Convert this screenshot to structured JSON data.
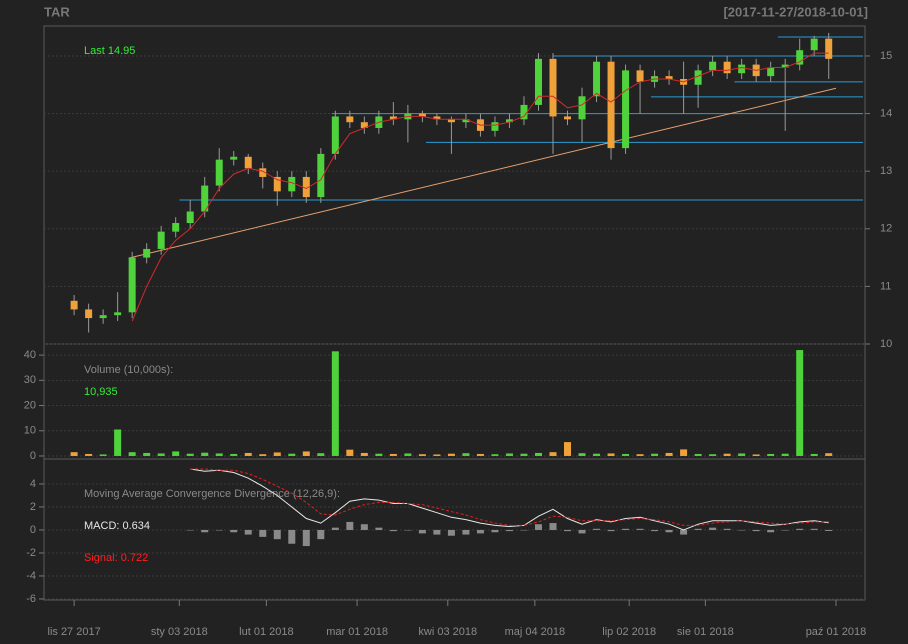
{
  "chart_data": {
    "type": "candlestick",
    "title": "TAR",
    "subtitle": "[2017-11-27/2018-10-01]",
    "annotation": "Last 14.95",
    "up_color": "#4fd23c",
    "down_color": "#f0a23a",
    "x": [
      0,
      4,
      8,
      12,
      16,
      20,
      24,
      28,
      32,
      36,
      40,
      44,
      48,
      52,
      56,
      60,
      64,
      68,
      72,
      76,
      80,
      84,
      88,
      92,
      96,
      100,
      104,
      108,
      112,
      116,
      120,
      124,
      128,
      132,
      136,
      140,
      144,
      148,
      152,
      156,
      160,
      164,
      168,
      172,
      176,
      180,
      184,
      188,
      192,
      196,
      200,
      204,
      208
    ],
    "xlim": [
      -8.3,
      218
    ],
    "xticks": [
      {
        "value": 0,
        "label": "lis 27 2017"
      },
      {
        "value": 29,
        "label": "sty 03 2018"
      },
      {
        "value": 53,
        "label": "lut 01 2018"
      },
      {
        "value": 78,
        "label": "mar 01 2018"
      },
      {
        "value": 103,
        "label": "kwi 03 2018"
      },
      {
        "value": 127,
        "label": "maj 04 2018"
      },
      {
        "value": 153,
        "label": "lip 02 2018"
      },
      {
        "value": 174,
        "label": "sie 01 2018"
      },
      {
        "value": 210,
        "label": "paź 01 2018"
      }
    ],
    "open": [
      10.75,
      10.6,
      10.45,
      10.5,
      10.55,
      11.5,
      11.65,
      11.95,
      12.1,
      12.3,
      12.75,
      13.2,
      13.25,
      13.05,
      12.9,
      12.65,
      12.9,
      12.55,
      13.3,
      13.95,
      13.85,
      13.75,
      13.95,
      13.9,
      14.0,
      13.95,
      13.9,
      13.85,
      13.9,
      13.7,
      13.85,
      13.9,
      14.15,
      14.95,
      13.95,
      13.9,
      14.3,
      14.9,
      13.4,
      14.75,
      14.55,
      14.65,
      14.6,
      14.5,
      14.75,
      14.9,
      14.7,
      14.85,
      14.65,
      14.8,
      14.85,
      15.1,
      15.3
    ],
    "high": [
      10.85,
      10.7,
      10.6,
      10.9,
      11.6,
      11.75,
      12.05,
      12.2,
      12.5,
      12.9,
      13.4,
      13.35,
      13.3,
      13.15,
      13.0,
      13.0,
      13.0,
      13.4,
      14.05,
      14.05,
      13.95,
      14.05,
      14.2,
      14.15,
      14.05,
      14.0,
      13.95,
      14.0,
      14.0,
      13.95,
      14.0,
      14.3,
      15.05,
      15.05,
      14.05,
      14.45,
      15.0,
      15.0,
      14.85,
      14.85,
      14.75,
      14.75,
      14.9,
      14.85,
      15.0,
      15.0,
      14.95,
      14.95,
      14.9,
      14.95,
      15.3,
      15.35,
      15.4
    ],
    "low": [
      10.5,
      10.2,
      10.35,
      10.4,
      10.45,
      11.4,
      11.55,
      11.85,
      12.0,
      12.2,
      12.65,
      13.1,
      12.95,
      12.7,
      12.4,
      12.55,
      12.45,
      12.45,
      13.2,
      13.75,
      13.65,
      13.65,
      13.8,
      13.5,
      13.85,
      13.8,
      13.3,
      13.75,
      13.6,
      13.6,
      13.75,
      13.8,
      14.05,
      13.3,
      13.8,
      13.5,
      14.2,
      13.2,
      13.3,
      14.0,
      14.45,
      14.5,
      14.0,
      14.1,
      14.65,
      14.6,
      14.6,
      14.55,
      14.55,
      13.7,
      14.75,
      15.0,
      14.6
    ],
    "close": [
      10.6,
      10.45,
      10.5,
      10.55,
      11.5,
      11.65,
      11.95,
      12.1,
      12.3,
      12.75,
      13.2,
      13.25,
      13.05,
      12.9,
      12.65,
      12.9,
      12.55,
      13.3,
      13.95,
      13.85,
      13.75,
      13.95,
      13.9,
      14.0,
      13.95,
      13.9,
      13.85,
      13.9,
      13.7,
      13.85,
      13.9,
      14.15,
      14.95,
      13.95,
      13.9,
      14.3,
      14.9,
      13.4,
      14.75,
      14.55,
      14.65,
      14.6,
      14.5,
      14.75,
      14.9,
      14.7,
      14.85,
      14.65,
      14.8,
      14.85,
      15.1,
      15.3,
      14.95
    ],
    "ylim": [
      10,
      15.52
    ],
    "yticks": [
      10,
      11,
      12,
      13,
      14,
      15
    ],
    "ma": {
      "color": "#d42a2a",
      "values": [
        null,
        null,
        null,
        null,
        10.4,
        11.0,
        11.5,
        11.8,
        12.0,
        12.3,
        12.7,
        12.95,
        13.05,
        13.0,
        12.85,
        12.8,
        12.7,
        12.85,
        13.3,
        13.65,
        13.75,
        13.85,
        13.9,
        13.95,
        13.95,
        13.9,
        13.9,
        13.9,
        13.8,
        13.8,
        13.85,
        13.95,
        14.3,
        14.3,
        14.1,
        14.15,
        14.35,
        14.2,
        14.4,
        14.55,
        14.6,
        14.6,
        14.55,
        14.65,
        14.75,
        14.75,
        14.8,
        14.75,
        14.8,
        14.8,
        14.9,
        15.05,
        15.05
      ]
    },
    "levels": [
      {
        "value": 15.33,
        "from": 194
      },
      {
        "value": 15.0,
        "from": 132
      },
      {
        "value": 14.55,
        "from": 182
      },
      {
        "value": 14.29,
        "from": 159
      },
      {
        "value": 14.0,
        "from": 71
      },
      {
        "value": 13.5,
        "from": 97
      },
      {
        "value": 12.5,
        "from": 29
      }
    ],
    "level_color": "#2a9bd6",
    "trendline": {
      "x": [
        15,
        210
      ],
      "y": [
        11.49,
        14.44
      ],
      "color": "#e8a070"
    },
    "volume": {
      "label": "Volume (10,000s):",
      "last_label": "10,935",
      "values": [
        1.5,
        0.8,
        0.6,
        10.5,
        1.5,
        1.2,
        1.0,
        1.8,
        0.9,
        1.3,
        1.0,
        0.8,
        1.2,
        0.7,
        1.4,
        0.9,
        1.8,
        1.1,
        41.5,
        2.5,
        1.2,
        0.9,
        0.8,
        1.0,
        0.7,
        0.6,
        0.9,
        1.1,
        0.8,
        0.7,
        1.0,
        0.9,
        1.2,
        1.5,
        5.5,
        1.1,
        0.9,
        1.0,
        0.8,
        0.7,
        0.9,
        1.2,
        2.6,
        0.8,
        0.7,
        0.9,
        1.0,
        0.6,
        0.8,
        0.9,
        42,
        0.8,
        1.0935
      ],
      "ylim": [
        -1.2,
        44.4
      ],
      "yticks": [
        0,
        10,
        20,
        30,
        40
      ]
    },
    "macd": {
      "label": "Moving Average Convergence Divergence (12,26,9):",
      "macd_label": "MACD: 0.634",
      "signal_label": "Signal: 0.722",
      "ylim": [
        -6.09,
        6.17
      ],
      "yticks": [
        -6,
        -4,
        -2,
        0,
        2,
        4
      ],
      "macd": {
        "color": "#e8e8e8",
        "values": [
          null,
          null,
          null,
          null,
          null,
          null,
          null,
          null,
          5.3,
          5.1,
          5.2,
          5.0,
          4.5,
          3.8,
          3.0,
          2.0,
          1.0,
          0.6,
          1.5,
          2.5,
          2.7,
          2.6,
          2.3,
          2.3,
          1.9,
          1.5,
          1.1,
          0.9,
          0.6,
          0.4,
          0.3,
          0.4,
          1.2,
          1.8,
          1.0,
          0.5,
          0.9,
          0.7,
          1.0,
          1.1,
          0.8,
          0.5,
          0.0,
          0.5,
          0.8,
          0.8,
          0.8,
          0.6,
          0.4,
          0.5,
          0.7,
          0.8,
          0.634
        ]
      },
      "signal": {
        "color": "#e02020",
        "values": [
          null,
          null,
          null,
          null,
          null,
          null,
          null,
          null,
          5.3,
          5.3,
          5.2,
          5.2,
          4.9,
          4.4,
          3.8,
          3.2,
          2.4,
          1.4,
          1.3,
          1.8,
          2.2,
          2.4,
          2.4,
          2.3,
          2.2,
          1.9,
          1.6,
          1.3,
          0.9,
          0.6,
          0.4,
          0.4,
          0.7,
          1.2,
          1.1,
          0.8,
          0.8,
          0.8,
          0.9,
          1.0,
          0.9,
          0.7,
          0.4,
          0.4,
          0.6,
          0.7,
          0.8,
          0.7,
          0.6,
          0.5,
          0.6,
          0.7,
          0.722
        ]
      },
      "histogram": {
        "color": "#8a8a8a",
        "values": [
          null,
          null,
          null,
          null,
          null,
          null,
          null,
          null,
          0,
          -0.2,
          0,
          -0.2,
          -0.4,
          -0.6,
          -0.8,
          -1.2,
          -1.4,
          -0.8,
          0.2,
          0.7,
          0.5,
          0.2,
          -0.1,
          0,
          -0.3,
          -0.4,
          -0.5,
          -0.4,
          -0.3,
          -0.2,
          -0.1,
          0,
          0.5,
          0.6,
          -0.1,
          -0.3,
          0.1,
          -0.1,
          0.1,
          0.1,
          -0.1,
          -0.2,
          -0.4,
          0.1,
          0.2,
          0.1,
          0,
          -0.1,
          -0.2,
          0,
          0.1,
          0.1,
          -0.088
        ]
      }
    }
  }
}
